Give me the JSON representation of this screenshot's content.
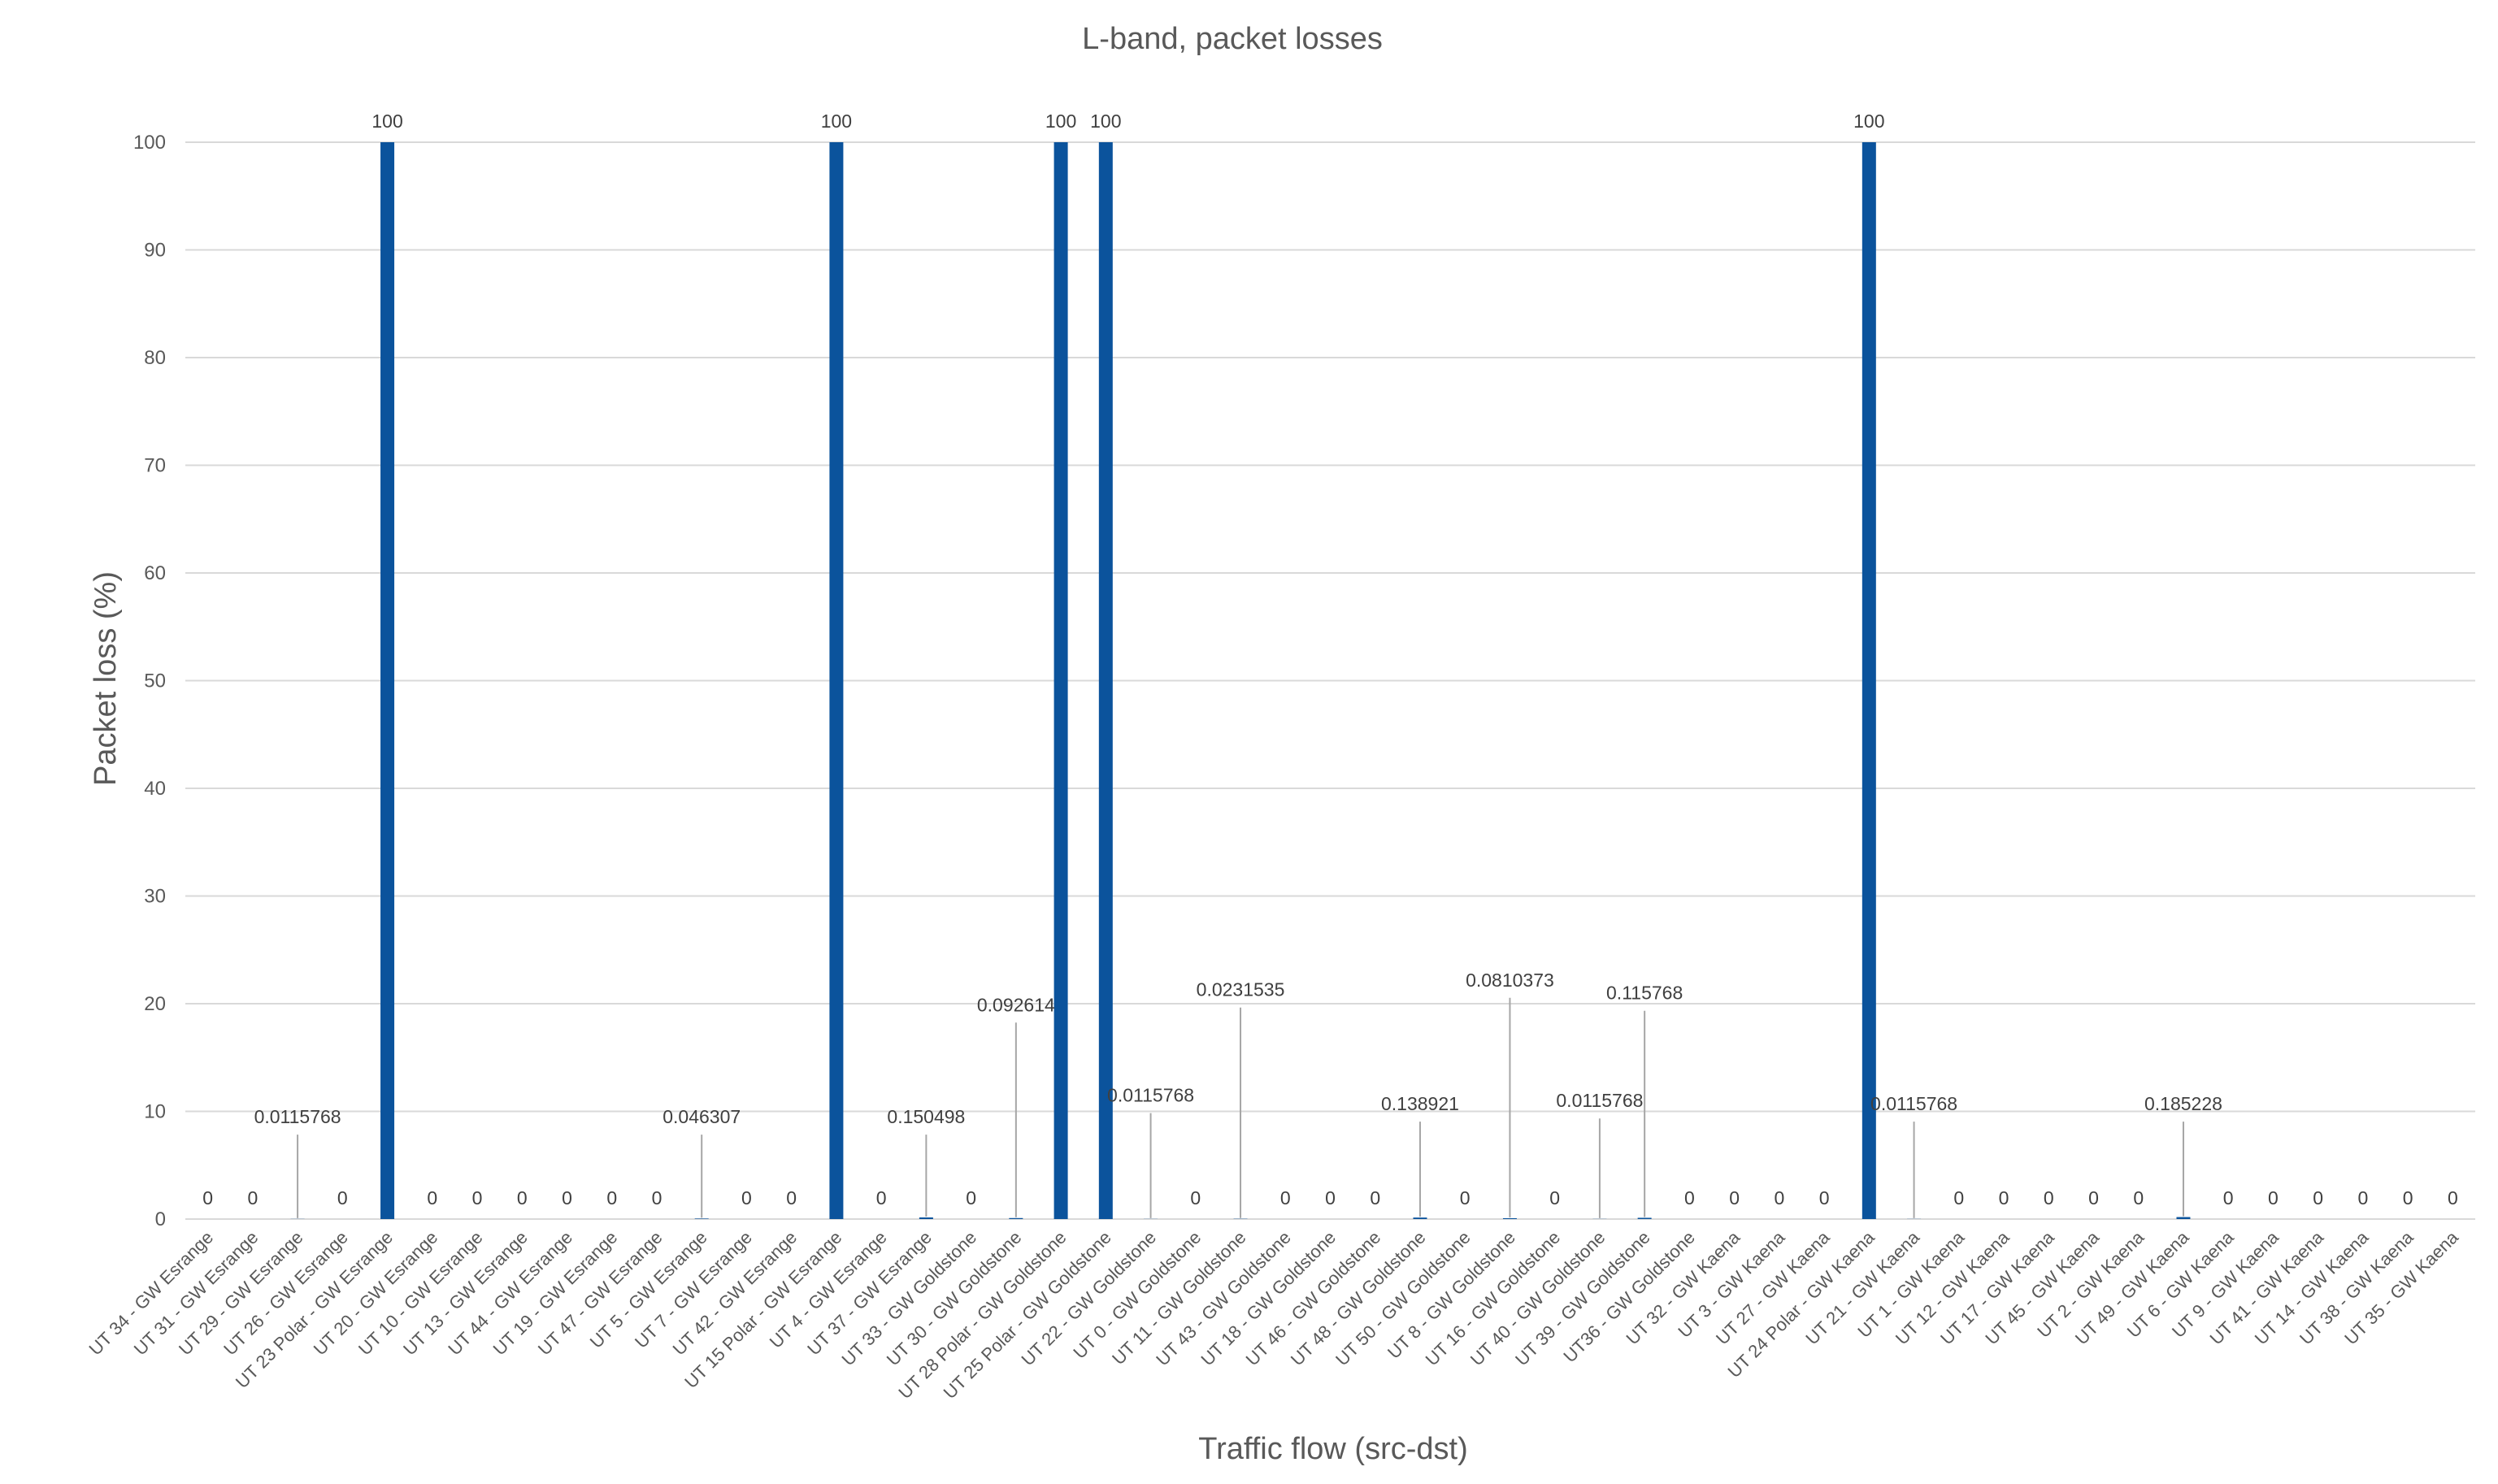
{
  "chart_data": {
    "type": "bar",
    "title": "L-band, packet losses",
    "xlabel": "Traffic flow (src-dst)",
    "ylabel": "Packet loss (%)",
    "ylim": [
      0,
      100
    ],
    "yticks": [
      0,
      10,
      20,
      30,
      40,
      50,
      60,
      70,
      80,
      90,
      100
    ],
    "grid": true,
    "bar_color": "#0B539C",
    "leader_color": "#A6A6A6",
    "categories": [
      "UT 34 - GW Esrange",
      "UT 31 - GW Esrange",
      "UT 29 - GW Esrange",
      "UT 26 - GW Esrange",
      "UT 23 Polar - GW Esrange",
      "UT 20 - GW Esrange",
      "UT 10 - GW Esrange",
      "UT 13 - GW Esrange",
      "UT 44 - GW Esrange",
      "UT 19 - GW Esrange",
      "UT 47 - GW Esrange",
      "UT 5 - GW Esrange",
      "UT 7 - GW Esrange",
      "UT 42 - GW Esrange",
      "UT 15 Polar - GW Esrange",
      "UT 4 - GW Esrange",
      "UT 37 - GW Esrange",
      "UT 33 - GW Goldstone",
      "UT 30 - GW Goldstone",
      "UT 28 Polar - GW Goldstone",
      "UT 25 Polar - GW Goldstone",
      "UT 22 - GW Goldstone",
      "UT 0 - GW Goldstone",
      "UT 11 - GW Goldstone",
      "UT 43 - GW Goldstone",
      "UT 18 - GW Goldstone",
      "UT 46 - GW Goldstone",
      "UT 48 - GW Goldstone",
      "UT 50 - GW Goldstone",
      "UT 8 - GW Goldstone",
      "UT 16 - GW Goldstone",
      "UT 40 - GW Goldstone",
      "UT 39 - GW Goldstone",
      "UT36 - GW Goldstone",
      "UT 32 - GW Kaena",
      "UT 3 - GW Kaena",
      "UT 27 - GW Kaena",
      "UT 24 Polar - GW Kaena",
      "UT 21 - GW Kaena",
      "UT 1 - GW Kaena",
      "UT 12 - GW Kaena",
      "UT 17 - GW Kaena",
      "UT 45 - GW Kaena",
      "UT 2 - GW Kaena",
      "UT 49 - GW Kaena",
      "UT 6 - GW Kaena",
      "UT 9 - GW Kaena",
      "UT 41 - GW Kaena",
      "UT 14 - GW Kaena",
      "UT 38 - GW Kaena",
      "UT 35 - GW Kaena"
    ],
    "values": [
      0,
      0,
      0.0115768,
      0,
      100,
      0,
      0,
      0,
      0,
      0,
      0,
      0.046307,
      0,
      0,
      100,
      0,
      0.150498,
      0,
      0.092614,
      100,
      100,
      0.0115768,
      0,
      0.0231535,
      0,
      0,
      0,
      0.138921,
      0,
      0.0810373,
      0,
      0.0115768,
      0.115768,
      0,
      0,
      0,
      0,
      100,
      0.0115768,
      0,
      0,
      0,
      0,
      0,
      0.185228,
      0,
      0,
      0,
      0,
      0,
      0
    ],
    "data_labels": [
      "0",
      "0",
      "0.0115768",
      "0",
      "100",
      "0",
      "0",
      "0",
      "0",
      "0",
      "0",
      "0.046307",
      "0",
      "0",
      "100",
      "0",
      "0.150498",
      "0",
      "0.092614",
      "100",
      "100",
      "0.0115768",
      "0",
      "0.0231535",
      "0",
      "0",
      "0",
      "0.138921",
      "0",
      "0.0810373",
      "0",
      "0.0115768",
      "0.115768",
      "0",
      "0",
      "0",
      "0",
      "100",
      "0.0115768",
      "0",
      "0",
      "0",
      "0",
      "0",
      "0.185228",
      "0",
      "0",
      "0",
      "0",
      "0",
      "0"
    ],
    "callouts": [
      {
        "index": 2,
        "label_y": 8.9
      },
      {
        "index": 11,
        "label_y": 8.9
      },
      {
        "index": 16,
        "label_y": 8.9
      },
      {
        "index": 18,
        "label_y": 19.3
      },
      {
        "index": 21,
        "label_y": 10.9
      },
      {
        "index": 23,
        "label_y": 20.7
      },
      {
        "index": 27,
        "label_y": 10.1
      },
      {
        "index": 29,
        "label_y": 21.6
      },
      {
        "index": 31,
        "label_y": 10.4
      },
      {
        "index": 32,
        "label_y": 20.4
      },
      {
        "index": 38,
        "label_y": 10.1
      },
      {
        "index": 44,
        "label_y": 10.1
      }
    ]
  }
}
